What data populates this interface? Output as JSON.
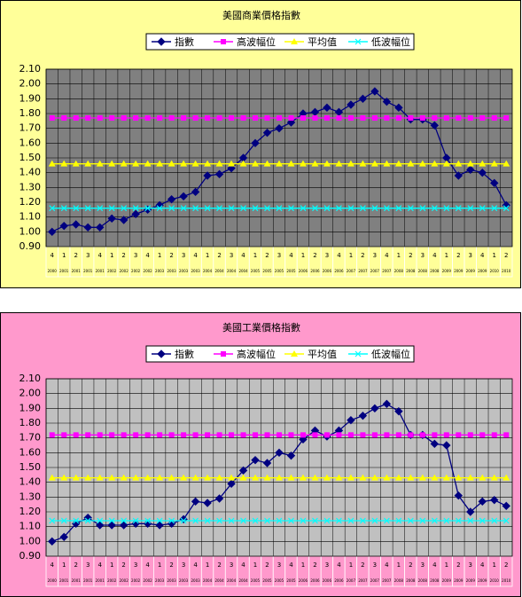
{
  "chart_data": [
    {
      "type": "line",
      "title": "美國商業價格指數",
      "background": "#ffff99",
      "plot_background": "#808080",
      "label_background": "#ffff99",
      "categories": [
        "4",
        "1",
        "2",
        "3",
        "4",
        "1",
        "2",
        "3",
        "4",
        "1",
        "2",
        "3",
        "4",
        "1",
        "2",
        "3",
        "4",
        "1",
        "2",
        "3",
        "4",
        "1",
        "2",
        "3",
        "4",
        "1",
        "2",
        "3",
        "4",
        "1",
        "2",
        "3",
        "4",
        "1",
        "2",
        "3",
        "4",
        "1",
        "2"
      ],
      "years": [
        "2000",
        "2001",
        "2001",
        "2001",
        "2001",
        "2002",
        "2002",
        "2002",
        "2002",
        "2003",
        "2003",
        "2003",
        "2003",
        "2004",
        "2004",
        "2004",
        "2004",
        "2005",
        "2005",
        "2005",
        "2005",
        "2006",
        "2006",
        "2006",
        "2006",
        "2007",
        "2007",
        "2007",
        "2007",
        "2008",
        "2008",
        "2008",
        "2008",
        "2009",
        "2009",
        "2009",
        "2009",
        "2010",
        "2010"
      ],
      "series": [
        {
          "name": "指數",
          "color": "#000080",
          "marker": "diamond",
          "values": [
            1.0,
            1.04,
            1.05,
            1.03,
            1.03,
            1.09,
            1.08,
            1.12,
            1.15,
            1.18,
            1.22,
            1.24,
            1.27,
            1.38,
            1.39,
            1.43,
            1.5,
            1.6,
            1.67,
            1.7,
            1.74,
            1.8,
            1.81,
            1.84,
            1.81,
            1.86,
            1.9,
            1.95,
            1.88,
            1.84,
            1.76,
            1.76,
            1.72,
            1.5,
            1.38,
            1.42,
            1.4,
            1.33,
            1.18
          ]
        },
        {
          "name": "高波幅位",
          "color": "#ff00ff",
          "marker": "square",
          "values": [
            1.77,
            1.77,
            1.77,
            1.77,
            1.77,
            1.77,
            1.77,
            1.77,
            1.77,
            1.77,
            1.77,
            1.77,
            1.77,
            1.77,
            1.77,
            1.77,
            1.77,
            1.77,
            1.77,
            1.77,
            1.77,
            1.77,
            1.77,
            1.77,
            1.77,
            1.77,
            1.77,
            1.77,
            1.77,
            1.77,
            1.77,
            1.77,
            1.77,
            1.77,
            1.77,
            1.77,
            1.77,
            1.77,
            1.77
          ]
        },
        {
          "name": "平均值",
          "color": "#ffff00",
          "marker": "triangle",
          "values": [
            1.46,
            1.46,
            1.46,
            1.46,
            1.46,
            1.46,
            1.46,
            1.46,
            1.46,
            1.46,
            1.46,
            1.46,
            1.46,
            1.46,
            1.46,
            1.46,
            1.46,
            1.46,
            1.46,
            1.46,
            1.46,
            1.46,
            1.46,
            1.46,
            1.46,
            1.46,
            1.46,
            1.46,
            1.46,
            1.46,
            1.46,
            1.46,
            1.46,
            1.46,
            1.46,
            1.46,
            1.46,
            1.46,
            1.46
          ]
        },
        {
          "name": "低波幅位",
          "color": "#00ffff",
          "marker": "x",
          "values": [
            1.16,
            1.16,
            1.16,
            1.16,
            1.16,
            1.16,
            1.16,
            1.16,
            1.16,
            1.16,
            1.16,
            1.16,
            1.16,
            1.16,
            1.16,
            1.16,
            1.16,
            1.16,
            1.16,
            1.16,
            1.16,
            1.16,
            1.16,
            1.16,
            1.16,
            1.16,
            1.16,
            1.16,
            1.16,
            1.16,
            1.16,
            1.16,
            1.16,
            1.16,
            1.16,
            1.16,
            1.16,
            1.16,
            1.16
          ]
        }
      ],
      "ylim": [
        0.9,
        2.1
      ],
      "yticks": [
        {
          "value": 0.9,
          "label": "0.90"
        },
        {
          "value": 1.0,
          "label": "1.00"
        },
        {
          "value": 1.1,
          "label": "1.10"
        },
        {
          "value": 1.2,
          "label": "1.20"
        },
        {
          "value": 1.3,
          "label": "1.30"
        },
        {
          "value": 1.4,
          "label": "1.40"
        },
        {
          "value": 1.5,
          "label": "1.50"
        },
        {
          "value": 1.6,
          "label": "1.60"
        },
        {
          "value": 1.7,
          "label": "1.70"
        },
        {
          "value": 1.8,
          "label": "1.80"
        },
        {
          "value": 1.9,
          "label": "1.90"
        },
        {
          "value": 2.0,
          "label": "2.00"
        },
        {
          "value": 2.1,
          "label": "2.10"
        }
      ],
      "grid": true,
      "legend": "top"
    },
    {
      "type": "line",
      "title": "美國工業價格指數",
      "background": "#ff99cc",
      "plot_background": "#c0c0c0",
      "label_background": "#ff99cc",
      "categories": [
        "4",
        "1",
        "2",
        "3",
        "4",
        "1",
        "2",
        "3",
        "4",
        "1",
        "2",
        "3",
        "4",
        "1",
        "2",
        "3",
        "4",
        "1",
        "2",
        "3",
        "4",
        "1",
        "2",
        "3",
        "4",
        "1",
        "2",
        "3",
        "4",
        "1",
        "2",
        "3",
        "4",
        "1",
        "2",
        "3",
        "4",
        "1",
        "2"
      ],
      "years": [
        "2000",
        "2001",
        "2001",
        "2001",
        "2001",
        "2002",
        "2002",
        "2002",
        "2002",
        "2003",
        "2003",
        "2003",
        "2003",
        "2004",
        "2004",
        "2004",
        "2004",
        "2005",
        "2005",
        "2005",
        "2005",
        "2006",
        "2006",
        "2006",
        "2006",
        "2007",
        "2007",
        "2007",
        "2007",
        "2008",
        "2008",
        "2008",
        "2008",
        "2009",
        "2009",
        "2009",
        "2009",
        "2010",
        "2010"
      ],
      "series": [
        {
          "name": "指數",
          "color": "#000080",
          "marker": "diamond",
          "values": [
            1.0,
            1.03,
            1.12,
            1.16,
            1.11,
            1.11,
            1.11,
            1.12,
            1.12,
            1.11,
            1.12,
            1.15,
            1.27,
            1.26,
            1.29,
            1.39,
            1.48,
            1.55,
            1.53,
            1.6,
            1.58,
            1.69,
            1.75,
            1.71,
            1.75,
            1.82,
            1.85,
            1.9,
            1.93,
            1.88,
            1.72,
            1.72,
            1.66,
            1.65,
            1.31,
            1.2,
            1.27,
            1.28,
            1.24
          ]
        },
        {
          "name": "高波幅位",
          "color": "#ff00ff",
          "marker": "square",
          "values": [
            1.72,
            1.72,
            1.72,
            1.72,
            1.72,
            1.72,
            1.72,
            1.72,
            1.72,
            1.72,
            1.72,
            1.72,
            1.72,
            1.72,
            1.72,
            1.72,
            1.72,
            1.72,
            1.72,
            1.72,
            1.72,
            1.72,
            1.72,
            1.72,
            1.72,
            1.72,
            1.72,
            1.72,
            1.72,
            1.72,
            1.72,
            1.72,
            1.72,
            1.72,
            1.72,
            1.72,
            1.72,
            1.72,
            1.72
          ]
        },
        {
          "name": "平均值",
          "color": "#ffff00",
          "marker": "triangle",
          "values": [
            1.43,
            1.43,
            1.43,
            1.43,
            1.43,
            1.43,
            1.43,
            1.43,
            1.43,
            1.43,
            1.43,
            1.43,
            1.43,
            1.43,
            1.43,
            1.43,
            1.43,
            1.43,
            1.43,
            1.43,
            1.43,
            1.43,
            1.43,
            1.43,
            1.43,
            1.43,
            1.43,
            1.43,
            1.43,
            1.43,
            1.43,
            1.43,
            1.43,
            1.43,
            1.43,
            1.43,
            1.43,
            1.43,
            1.43
          ]
        },
        {
          "name": "低波幅位",
          "color": "#00ffff",
          "marker": "x",
          "values": [
            1.14,
            1.14,
            1.14,
            1.14,
            1.14,
            1.14,
            1.14,
            1.14,
            1.14,
            1.14,
            1.14,
            1.14,
            1.14,
            1.14,
            1.14,
            1.14,
            1.14,
            1.14,
            1.14,
            1.14,
            1.14,
            1.14,
            1.14,
            1.14,
            1.14,
            1.14,
            1.14,
            1.14,
            1.14,
            1.14,
            1.14,
            1.14,
            1.14,
            1.14,
            1.14,
            1.14,
            1.14,
            1.14,
            1.14
          ]
        }
      ],
      "ylim": [
        0.9,
        2.1
      ],
      "yticks": [
        {
          "value": 0.9,
          "label": "0.90"
        },
        {
          "value": 1.0,
          "label": "1.00"
        },
        {
          "value": 1.1,
          "label": "1.10"
        },
        {
          "value": 1.2,
          "label": "1.20"
        },
        {
          "value": 1.3,
          "label": "1.30"
        },
        {
          "value": 1.4,
          "label": "1.40"
        },
        {
          "value": 1.5,
          "label": "1.50"
        },
        {
          "value": 1.6,
          "label": "1.60"
        },
        {
          "value": 1.7,
          "label": "1.70"
        },
        {
          "value": 1.8,
          "label": "1.80"
        },
        {
          "value": 1.9,
          "label": "1.90"
        },
        {
          "value": 2.0,
          "label": "2.00"
        },
        {
          "value": 2.1,
          "label": "2.10"
        }
      ],
      "grid": true,
      "legend": "top"
    }
  ]
}
